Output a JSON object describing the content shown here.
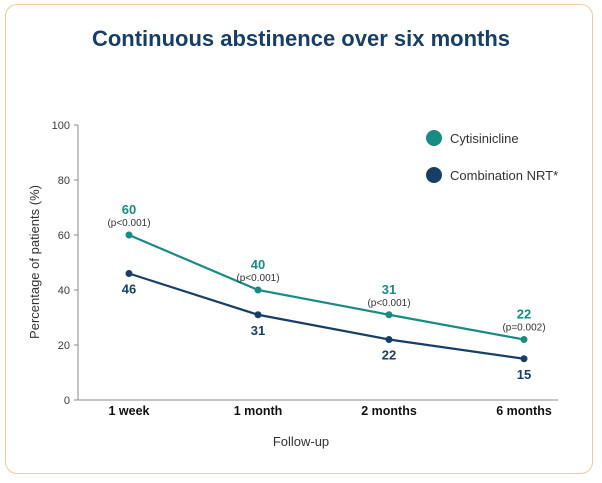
{
  "chart_data": {
    "type": "line",
    "title": "Continuous abstinence over six months",
    "xlabel": "Follow-up",
    "ylabel": "Percentage of patients (%)",
    "ylim": [
      0,
      100
    ],
    "yticks": [
      "0",
      "20",
      "40",
      "60",
      "80",
      "100"
    ],
    "categories": [
      "1 week",
      "1 month",
      "2 months",
      "6 months"
    ],
    "series": [
      {
        "name": "Cytisinicline",
        "color": "#1a8a85",
        "values": [
          60,
          40,
          31,
          22
        ],
        "labels": [
          "60",
          "40",
          "31",
          "22"
        ],
        "pvalues": [
          "(p<0.001)",
          "(p<0.001)",
          "(p<0.001)",
          "(p=0.002)"
        ]
      },
      {
        "name": "Combination NRT*",
        "color": "#173f66",
        "values": [
          46,
          31,
          22,
          15
        ],
        "labels": [
          "46",
          "31",
          "22",
          "15"
        ]
      }
    ],
    "legend": "top-right"
  },
  "colors": {
    "title": "#173f66",
    "border": "#f2c9a0",
    "axis": "#888888"
  }
}
